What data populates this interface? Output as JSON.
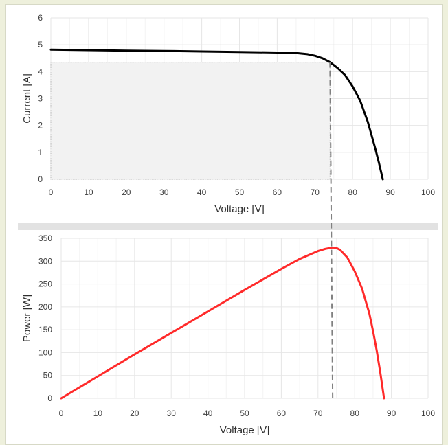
{
  "chart_data": [
    {
      "type": "line",
      "xlabel": "Voltage [V]",
      "ylabel": "Current [A]",
      "xlim": [
        0,
        100
      ],
      "ylim": [
        0,
        6
      ],
      "x_ticks": [
        "0",
        "10",
        "20",
        "30",
        "40",
        "50",
        "60",
        "70",
        "80",
        "90",
        "100"
      ],
      "y_ticks": [
        "0",
        "1",
        "2",
        "3",
        "4",
        "5",
        "6"
      ],
      "grid": true,
      "series": [
        {
          "color": "#000000",
          "x": [
            0,
            10,
            20,
            30,
            40,
            50,
            60,
            65,
            68,
            70,
            72,
            74,
            76,
            78,
            80,
            82,
            84,
            85,
            86,
            87,
            88
          ],
          "y": [
            4.82,
            4.8,
            4.78,
            4.77,
            4.75,
            4.73,
            4.71,
            4.69,
            4.65,
            4.59,
            4.5,
            4.35,
            4.14,
            3.87,
            3.45,
            2.92,
            2.14,
            1.65,
            1.15,
            0.6,
            0.0
          ]
        }
      ],
      "mpp_rectangle": {
        "voltage": 74,
        "current": 4.35,
        "color": "#f2f2f2"
      },
      "mpp_line": {
        "voltage": 74,
        "color": "#808080"
      }
    },
    {
      "type": "line",
      "xlabel": "Voltage [V]",
      "ylabel": "Power [W]",
      "xlim": [
        0,
        100
      ],
      "ylim": [
        0,
        350
      ],
      "x_ticks": [
        "0",
        "10",
        "20",
        "30",
        "40",
        "50",
        "60",
        "70",
        "80",
        "90",
        "100"
      ],
      "y_ticks": [
        "0",
        "50",
        "100",
        "150",
        "200",
        "250",
        "300",
        "350"
      ],
      "grid": true,
      "series": [
        {
          "color": "#ff2a2a",
          "x": [
            0,
            10,
            20,
            30,
            40,
            50,
            60,
            65,
            70,
            72,
            74,
            75,
            76,
            78,
            80,
            82,
            84,
            85,
            86,
            87,
            88
          ],
          "y": [
            0,
            48,
            96,
            143,
            190,
            237,
            283,
            305,
            322,
            327,
            330,
            329,
            325,
            308,
            278,
            240,
            185,
            147,
            105,
            55,
            0
          ]
        }
      ],
      "mpp_line": {
        "voltage": 74,
        "color": "#808080"
      }
    }
  ]
}
